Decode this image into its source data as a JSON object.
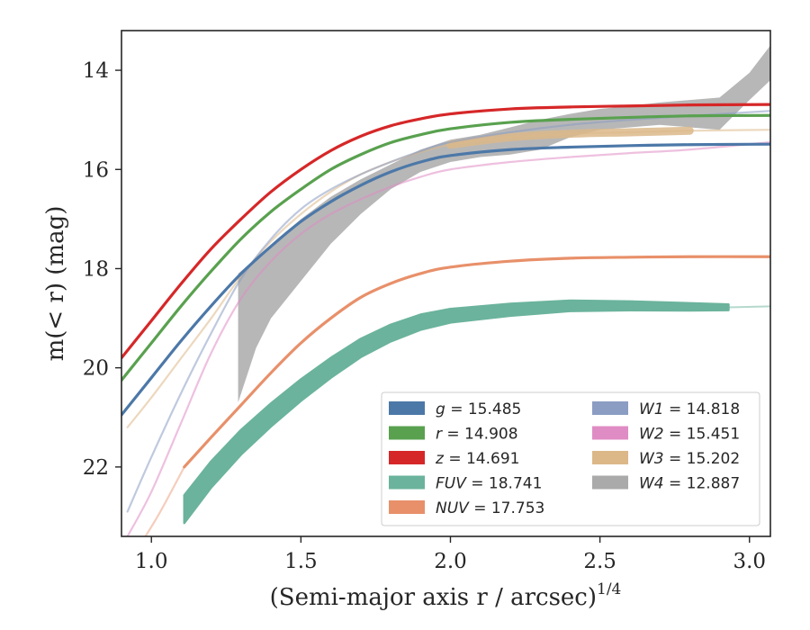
{
  "chart_data": {
    "type": "line",
    "title": "",
    "xlabel": "(Semi-major axis r / arcsec)",
    "xlabel_sup": "1/4",
    "ylabel": "m(< r) (mag)",
    "xlim": [
      0.9,
      3.07
    ],
    "ylim": [
      23.4,
      13.2
    ],
    "y_inverted": true,
    "x_ticks": [
      1.0,
      1.5,
      2.0,
      2.5,
      3.0
    ],
    "x_tick_labels": [
      "1.0",
      "1.5",
      "2.0",
      "2.5",
      "3.0"
    ],
    "y_ticks": [
      14,
      16,
      18,
      20,
      22
    ],
    "y_tick_labels": [
      "14",
      "16",
      "18",
      "20",
      "22"
    ],
    "grid": false,
    "legend_position": "lower-right",
    "series": [
      {
        "name": "g",
        "label": "g = 15.485",
        "color": "#4c78a8",
        "band": 0.06,
        "points": [
          [
            0.9,
            20.95
          ],
          [
            1.0,
            20.2
          ],
          [
            1.1,
            19.45
          ],
          [
            1.2,
            18.75
          ],
          [
            1.3,
            18.1
          ],
          [
            1.4,
            17.55
          ],
          [
            1.5,
            17.05
          ],
          [
            1.6,
            16.65
          ],
          [
            1.7,
            16.32
          ],
          [
            1.8,
            16.05
          ],
          [
            1.9,
            15.85
          ],
          [
            2.0,
            15.72
          ],
          [
            2.2,
            15.6
          ],
          [
            2.4,
            15.55
          ],
          [
            2.6,
            15.52
          ],
          [
            2.8,
            15.5
          ],
          [
            3.07,
            15.49
          ]
        ]
      },
      {
        "name": "r",
        "label": "r = 14.908",
        "color": "#59a14f",
        "band": 0.06,
        "points": [
          [
            0.9,
            20.25
          ],
          [
            1.0,
            19.5
          ],
          [
            1.1,
            18.75
          ],
          [
            1.2,
            18.05
          ],
          [
            1.3,
            17.4
          ],
          [
            1.4,
            16.85
          ],
          [
            1.5,
            16.4
          ],
          [
            1.6,
            16.0
          ],
          [
            1.7,
            15.7
          ],
          [
            1.8,
            15.46
          ],
          [
            1.9,
            15.3
          ],
          [
            2.0,
            15.18
          ],
          [
            2.2,
            15.05
          ],
          [
            2.4,
            14.99
          ],
          [
            2.6,
            14.95
          ],
          [
            2.8,
            14.92
          ],
          [
            3.07,
            14.91
          ]
        ]
      },
      {
        "name": "z",
        "label": "z = 14.691",
        "color": "#d62728",
        "band": 0.06,
        "points": [
          [
            0.9,
            19.8
          ],
          [
            1.0,
            19.05
          ],
          [
            1.1,
            18.3
          ],
          [
            1.2,
            17.6
          ],
          [
            1.3,
            17.0
          ],
          [
            1.4,
            16.45
          ],
          [
            1.5,
            16.0
          ],
          [
            1.6,
            15.62
          ],
          [
            1.7,
            15.33
          ],
          [
            1.8,
            15.12
          ],
          [
            1.9,
            14.98
          ],
          [
            2.0,
            14.88
          ],
          [
            2.2,
            14.78
          ],
          [
            2.4,
            14.74
          ],
          [
            2.6,
            14.72
          ],
          [
            2.8,
            14.7
          ],
          [
            3.07,
            14.69
          ]
        ]
      },
      {
        "name": "FUV",
        "label": "FUV = 18.741",
        "color": "#6bb39c",
        "band": 0.28,
        "points": [
          [
            1.11,
            22.85
          ],
          [
            1.2,
            22.15
          ],
          [
            1.3,
            21.5
          ],
          [
            1.4,
            20.95
          ],
          [
            1.5,
            20.45
          ],
          [
            1.6,
            20.0
          ],
          [
            1.7,
            19.6
          ],
          [
            1.8,
            19.3
          ],
          [
            1.9,
            19.08
          ],
          [
            2.0,
            18.95
          ],
          [
            2.2,
            18.83
          ],
          [
            2.4,
            18.75
          ],
          [
            2.6,
            18.75
          ],
          [
            2.8,
            18.77
          ],
          [
            2.93,
            18.78
          ]
        ]
      },
      {
        "name": "NUV",
        "label": "NUV = 17.753",
        "color": "#e8906a",
        "band": 0.08,
        "points": [
          [
            1.11,
            22.0
          ],
          [
            1.2,
            21.4
          ],
          [
            1.3,
            20.75
          ],
          [
            1.4,
            20.1
          ],
          [
            1.5,
            19.5
          ],
          [
            1.6,
            19.0
          ],
          [
            1.7,
            18.58
          ],
          [
            1.8,
            18.3
          ],
          [
            1.9,
            18.1
          ],
          [
            2.0,
            17.97
          ],
          [
            2.2,
            17.85
          ],
          [
            2.4,
            17.79
          ],
          [
            2.6,
            17.77
          ],
          [
            2.8,
            17.76
          ],
          [
            3.07,
            17.76
          ]
        ]
      },
      {
        "name": "W1",
        "label": "W1 = 14.818",
        "color": "#8b9dc3",
        "band": 0.06,
        "points": [
          [
            0.92,
            22.9
          ],
          [
            1.0,
            21.8
          ],
          [
            1.1,
            20.5
          ],
          [
            1.2,
            19.3
          ],
          [
            1.3,
            18.2
          ],
          [
            1.4,
            17.4
          ],
          [
            1.5,
            16.8
          ],
          [
            1.6,
            16.4
          ],
          [
            1.7,
            16.1
          ],
          [
            1.8,
            15.85
          ],
          [
            1.9,
            15.63
          ],
          [
            2.0,
            15.45
          ],
          [
            2.2,
            15.25
          ],
          [
            2.4,
            15.1
          ],
          [
            2.6,
            15.0
          ],
          [
            2.8,
            14.92
          ],
          [
            3.07,
            14.82
          ]
        ]
      },
      {
        "name": "W2",
        "label": "W2 = 15.451",
        "color": "#e08cc4",
        "band": 0.06,
        "points": [
          [
            0.92,
            23.4
          ],
          [
            1.0,
            22.5
          ],
          [
            1.1,
            21.1
          ],
          [
            1.2,
            19.7
          ],
          [
            1.3,
            18.6
          ],
          [
            1.4,
            17.85
          ],
          [
            1.5,
            17.3
          ],
          [
            1.6,
            16.9
          ],
          [
            1.7,
            16.6
          ],
          [
            1.8,
            16.35
          ],
          [
            1.9,
            16.15
          ],
          [
            2.0,
            16.0
          ],
          [
            2.2,
            15.85
          ],
          [
            2.4,
            15.75
          ],
          [
            2.6,
            15.67
          ],
          [
            2.8,
            15.6
          ],
          [
            3.07,
            15.45
          ]
        ]
      },
      {
        "name": "W3",
        "label": "W3 = 15.202",
        "color": "#dcb889",
        "band": 0.08,
        "points": [
          [
            0.92,
            21.2
          ],
          [
            1.0,
            20.6
          ],
          [
            1.1,
            19.8
          ],
          [
            1.2,
            19.0
          ],
          [
            1.3,
            18.15
          ],
          [
            1.4,
            17.45
          ],
          [
            1.5,
            16.9
          ],
          [
            1.6,
            16.45
          ],
          [
            1.7,
            16.1
          ],
          [
            1.8,
            15.85
          ],
          [
            1.9,
            15.65
          ],
          [
            2.0,
            15.5
          ],
          [
            2.2,
            15.35
          ],
          [
            2.4,
            15.28
          ],
          [
            2.6,
            15.25
          ],
          [
            2.8,
            15.22
          ],
          [
            3.07,
            15.2
          ]
        ],
        "thick_range": [
          2.0,
          2.82
        ]
      },
      {
        "name": "W4",
        "label": "W4 = 12.887",
        "color": "#aaaaaa",
        "band_upper": [
          [
            1.29,
            18.1
          ],
          [
            1.4,
            17.55
          ],
          [
            1.5,
            17.0
          ],
          [
            1.6,
            16.55
          ],
          [
            1.7,
            16.2
          ],
          [
            1.8,
            15.9
          ],
          [
            1.9,
            15.6
          ],
          [
            2.0,
            15.4
          ],
          [
            2.1,
            15.3
          ],
          [
            2.2,
            15.15
          ],
          [
            2.3,
            15.0
          ],
          [
            2.4,
            14.88
          ],
          [
            2.5,
            14.78
          ],
          [
            2.6,
            14.72
          ],
          [
            2.7,
            14.65
          ],
          [
            2.8,
            14.6
          ],
          [
            2.9,
            14.55
          ],
          [
            3.0,
            14.05
          ],
          [
            3.07,
            13.5
          ]
        ],
        "band_lower": [
          [
            1.29,
            20.7
          ],
          [
            1.35,
            19.6
          ],
          [
            1.4,
            19.0
          ],
          [
            1.5,
            18.25
          ],
          [
            1.6,
            17.5
          ],
          [
            1.7,
            16.9
          ],
          [
            1.8,
            16.4
          ],
          [
            1.9,
            16.05
          ],
          [
            2.0,
            15.85
          ],
          [
            2.1,
            15.75
          ],
          [
            2.2,
            15.7
          ],
          [
            2.3,
            15.6
          ],
          [
            2.4,
            15.35
          ],
          [
            2.5,
            15.2
          ],
          [
            2.6,
            15.15
          ],
          [
            2.7,
            15.1
          ],
          [
            2.8,
            15.15
          ],
          [
            2.9,
            15.2
          ],
          [
            3.0,
            14.6
          ],
          [
            3.07,
            14.2
          ]
        ]
      }
    ]
  },
  "legend": {
    "left": [
      {
        "name": "g",
        "value": "= 15.485",
        "color": "#4c78a8"
      },
      {
        "name": "r",
        "value": "= 14.908",
        "color": "#59a14f"
      },
      {
        "name": "z",
        "value": "= 14.691",
        "color": "#d62728"
      },
      {
        "name": "FUV",
        "value": "= 18.741",
        "color": "#6bb39c"
      },
      {
        "name": "NUV",
        "value": "= 17.753",
        "color": "#e8906a"
      }
    ],
    "right": [
      {
        "name": "W1",
        "value": "= 14.818",
        "color": "#8b9dc3"
      },
      {
        "name": "W2",
        "value": "= 15.451",
        "color": "#e08cc4"
      },
      {
        "name": "W3",
        "value": "= 15.202",
        "color": "#dcb889"
      },
      {
        "name": "W4",
        "value": "= 12.887",
        "color": "#aaaaaa"
      }
    ]
  }
}
